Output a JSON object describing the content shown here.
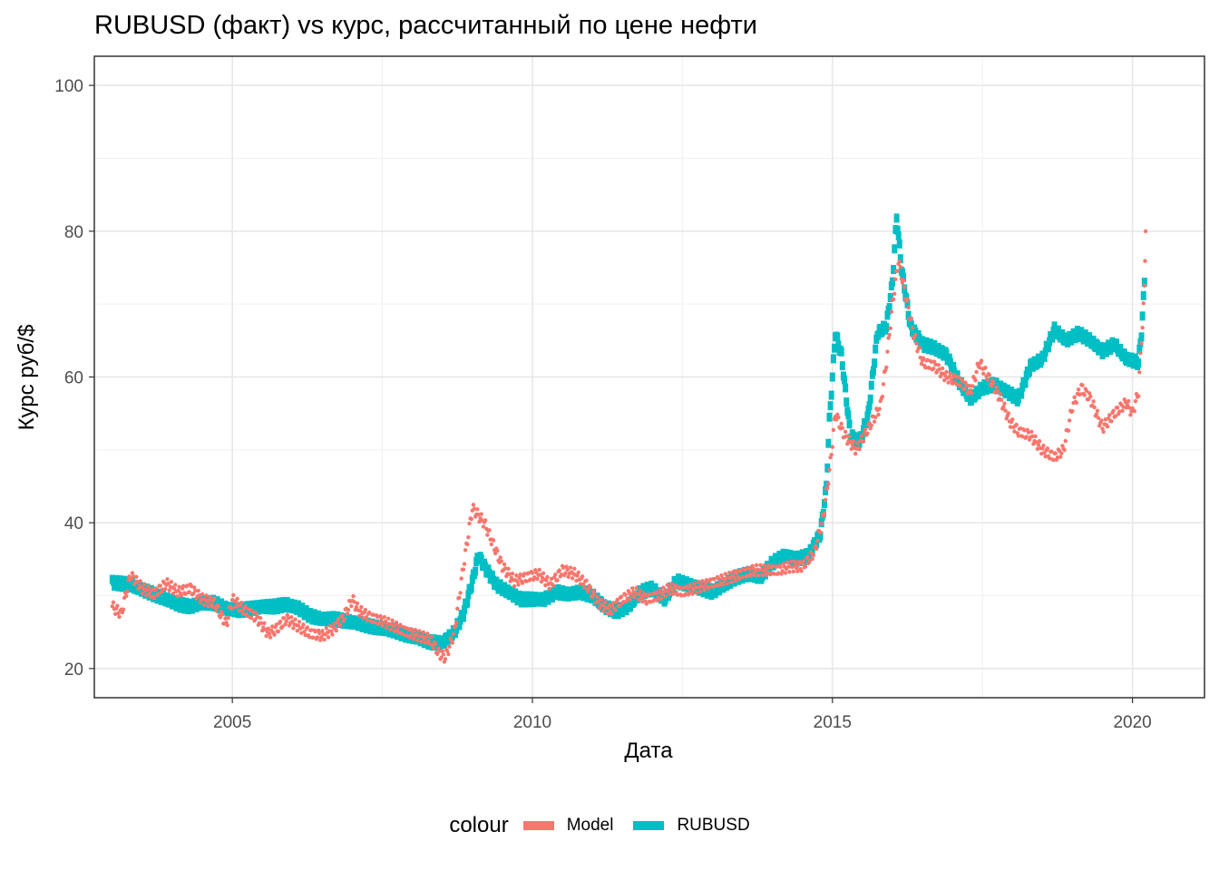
{
  "chart_data": {
    "type": "scatter",
    "title": "RUBUSD (факт) vs курс, рассчитанный по цене нефти",
    "xlabel": "Дата",
    "ylabel": "Курс руб/$",
    "xlim": [
      2002.7,
      2021.2
    ],
    "ylim": [
      16,
      104
    ],
    "x_ticks": [
      2005,
      2010,
      2015,
      2020
    ],
    "x_tick_labels": [
      "2005",
      "2010",
      "2015",
      "2020"
    ],
    "y_ticks": [
      20,
      40,
      60,
      80,
      100
    ],
    "y_tick_labels": [
      "20",
      "40",
      "60",
      "80",
      "100"
    ],
    "grid": true,
    "legend": {
      "title": "colour",
      "position": "bottom",
      "entries": [
        {
          "label": "Model",
          "color": "#F8766D"
        },
        {
          "label": "RUBUSD",
          "color": "#00BFC4"
        }
      ]
    },
    "series": [
      {
        "name": "Model",
        "color": "#F8766D",
        "points": [
          [
            2003.0,
            28.5
          ],
          [
            2003.15,
            27.5
          ],
          [
            2003.3,
            32.8
          ],
          [
            2003.5,
            31.0
          ],
          [
            2003.7,
            30.2
          ],
          [
            2003.9,
            31.7
          ],
          [
            2004.1,
            30.5
          ],
          [
            2004.3,
            31.0
          ],
          [
            2004.5,
            29.5
          ],
          [
            2004.7,
            29.0
          ],
          [
            2004.9,
            26.0
          ],
          [
            2005.0,
            29.5
          ],
          [
            2005.2,
            28.0
          ],
          [
            2005.4,
            27.0
          ],
          [
            2005.6,
            24.8
          ],
          [
            2005.75,
            25.5
          ],
          [
            2005.9,
            26.8
          ],
          [
            2006.1,
            25.8
          ],
          [
            2006.3,
            24.8
          ],
          [
            2006.5,
            24.5
          ],
          [
            2006.7,
            25.5
          ],
          [
            2006.85,
            27.0
          ],
          [
            2007.0,
            29.5
          ],
          [
            2007.1,
            28.0
          ],
          [
            2007.3,
            27.0
          ],
          [
            2007.5,
            26.5
          ],
          [
            2007.7,
            25.8
          ],
          [
            2007.9,
            25.0
          ],
          [
            2008.1,
            24.5
          ],
          [
            2008.3,
            24.0
          ],
          [
            2008.45,
            22.0
          ],
          [
            2008.55,
            21.5
          ],
          [
            2008.7,
            25.0
          ],
          [
            2008.85,
            34.0
          ],
          [
            2009.0,
            42.0
          ],
          [
            2009.1,
            41.0
          ],
          [
            2009.2,
            40.0
          ],
          [
            2009.35,
            37.0
          ],
          [
            2009.5,
            34.0
          ],
          [
            2009.7,
            32.0
          ],
          [
            2009.9,
            32.5
          ],
          [
            2010.1,
            33.0
          ],
          [
            2010.3,
            31.5
          ],
          [
            2010.5,
            33.5
          ],
          [
            2010.7,
            33.0
          ],
          [
            2010.9,
            31.5
          ],
          [
            2011.1,
            29.0
          ],
          [
            2011.3,
            28.0
          ],
          [
            2011.5,
            29.5
          ],
          [
            2011.7,
            30.5
          ],
          [
            2011.9,
            29.5
          ],
          [
            2012.1,
            30.0
          ],
          [
            2012.3,
            31.0
          ],
          [
            2012.5,
            30.5
          ],
          [
            2012.7,
            31.0
          ],
          [
            2012.9,
            31.5
          ],
          [
            2013.1,
            32.0
          ],
          [
            2013.3,
            32.5
          ],
          [
            2013.5,
            33.0
          ],
          [
            2013.7,
            33.5
          ],
          [
            2013.9,
            33.5
          ],
          [
            2014.1,
            33.5
          ],
          [
            2014.3,
            34.0
          ],
          [
            2014.5,
            34.0
          ],
          [
            2014.7,
            36.0
          ],
          [
            2014.85,
            41.0
          ],
          [
            2014.95,
            47.0
          ],
          [
            2015.05,
            55.0
          ],
          [
            2015.2,
            52.0
          ],
          [
            2015.4,
            50.0
          ],
          [
            2015.6,
            53.0
          ],
          [
            2015.8,
            56.0
          ],
          [
            2015.9,
            62.0
          ],
          [
            2016.0,
            70.0
          ],
          [
            2016.1,
            76.0
          ],
          [
            2016.2,
            72.0
          ],
          [
            2016.35,
            66.0
          ],
          [
            2016.5,
            62.0
          ],
          [
            2016.7,
            61.5
          ],
          [
            2016.9,
            60.0
          ],
          [
            2017.1,
            59.5
          ],
          [
            2017.3,
            58.0
          ],
          [
            2017.45,
            62.0
          ],
          [
            2017.6,
            60.0
          ],
          [
            2017.8,
            57.0
          ],
          [
            2017.95,
            54.0
          ],
          [
            2018.1,
            52.5
          ],
          [
            2018.3,
            52.0
          ],
          [
            2018.5,
            50.0
          ],
          [
            2018.7,
            49.0
          ],
          [
            2018.85,
            50.0
          ],
          [
            2019.0,
            56.0
          ],
          [
            2019.15,
            58.5
          ],
          [
            2019.3,
            57.0
          ],
          [
            2019.5,
            53.0
          ],
          [
            2019.7,
            55.0
          ],
          [
            2019.9,
            56.5
          ],
          [
            2020.0,
            55.0
          ],
          [
            2020.1,
            58.0
          ],
          [
            2020.2,
            72.0
          ],
          [
            2020.22,
            80.0
          ]
        ]
      },
      {
        "name": "RUBUSD",
        "color": "#00BFC4",
        "points": [
          [
            2003.0,
            31.8
          ],
          [
            2003.3,
            31.5
          ],
          [
            2003.6,
            30.5
          ],
          [
            2003.9,
            29.5
          ],
          [
            2004.1,
            28.8
          ],
          [
            2004.3,
            28.5
          ],
          [
            2004.5,
            29.0
          ],
          [
            2004.7,
            29.0
          ],
          [
            2004.9,
            28.2
          ],
          [
            2005.1,
            28.0
          ],
          [
            2005.3,
            28.2
          ],
          [
            2005.5,
            28.5
          ],
          [
            2005.7,
            28.5
          ],
          [
            2005.9,
            28.8
          ],
          [
            2006.1,
            28.3
          ],
          [
            2006.3,
            27.2
          ],
          [
            2006.5,
            26.8
          ],
          [
            2006.7,
            26.8
          ],
          [
            2006.9,
            26.5
          ],
          [
            2007.1,
            26.2
          ],
          [
            2007.3,
            25.8
          ],
          [
            2007.5,
            25.5
          ],
          [
            2007.7,
            25.2
          ],
          [
            2007.9,
            24.6
          ],
          [
            2008.1,
            24.2
          ],
          [
            2008.3,
            23.6
          ],
          [
            2008.5,
            23.5
          ],
          [
            2008.7,
            25.0
          ],
          [
            2008.85,
            27.5
          ],
          [
            2009.0,
            32.0
          ],
          [
            2009.1,
            35.5
          ],
          [
            2009.2,
            34.0
          ],
          [
            2009.4,
            31.5
          ],
          [
            2009.6,
            30.5
          ],
          [
            2009.8,
            29.5
          ],
          [
            2010.0,
            29.5
          ],
          [
            2010.2,
            29.5
          ],
          [
            2010.4,
            30.5
          ],
          [
            2010.6,
            30.2
          ],
          [
            2010.8,
            30.5
          ],
          [
            2011.0,
            30.0
          ],
          [
            2011.2,
            28.5
          ],
          [
            2011.4,
            27.8
          ],
          [
            2011.6,
            28.5
          ],
          [
            2011.8,
            30.5
          ],
          [
            2012.0,
            31.0
          ],
          [
            2012.2,
            29.5
          ],
          [
            2012.4,
            32.0
          ],
          [
            2012.6,
            31.5
          ],
          [
            2012.8,
            31.0
          ],
          [
            2013.0,
            30.5
          ],
          [
            2013.2,
            31.5
          ],
          [
            2013.4,
            32.5
          ],
          [
            2013.6,
            33.0
          ],
          [
            2013.8,
            32.5
          ],
          [
            2014.0,
            34.5
          ],
          [
            2014.2,
            35.5
          ],
          [
            2014.4,
            35.0
          ],
          [
            2014.6,
            35.5
          ],
          [
            2014.8,
            38.5
          ],
          [
            2014.9,
            45.0
          ],
          [
            2014.95,
            54.0
          ],
          [
            2015.05,
            66.0
          ],
          [
            2015.15,
            63.0
          ],
          [
            2015.3,
            52.0
          ],
          [
            2015.45,
            51.0
          ],
          [
            2015.6,
            55.0
          ],
          [
            2015.75,
            66.0
          ],
          [
            2015.9,
            67.0
          ],
          [
            2016.0,
            73.0
          ],
          [
            2016.07,
            82.0
          ],
          [
            2016.15,
            75.0
          ],
          [
            2016.3,
            67.0
          ],
          [
            2016.5,
            64.5
          ],
          [
            2016.7,
            64.0
          ],
          [
            2016.9,
            63.0
          ],
          [
            2017.1,
            59.5
          ],
          [
            2017.3,
            57.0
          ],
          [
            2017.5,
            58.5
          ],
          [
            2017.7,
            59.0
          ],
          [
            2017.9,
            58.0
          ],
          [
            2018.1,
            57.0
          ],
          [
            2018.3,
            61.5
          ],
          [
            2018.5,
            62.5
          ],
          [
            2018.7,
            66.5
          ],
          [
            2018.9,
            65.0
          ],
          [
            2019.1,
            66.0
          ],
          [
            2019.3,
            65.0
          ],
          [
            2019.5,
            63.5
          ],
          [
            2019.7,
            64.5
          ],
          [
            2019.9,
            62.5
          ],
          [
            2020.1,
            62.0
          ],
          [
            2020.15,
            66.0
          ],
          [
            2020.2,
            73.0
          ]
        ]
      }
    ]
  }
}
